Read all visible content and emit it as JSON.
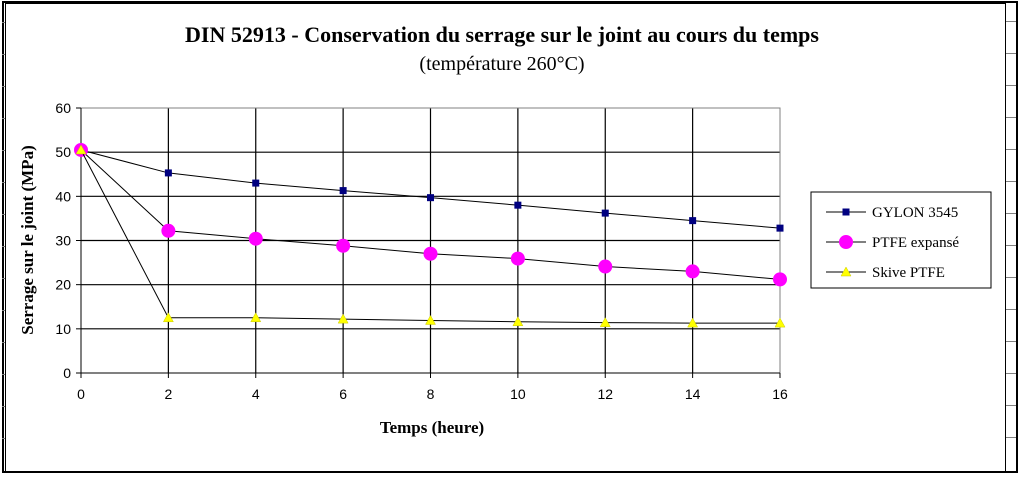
{
  "chart_data": {
    "type": "line",
    "title": "DIN 52913 - Conservation du serrage sur le joint au cours du temps",
    "subtitle": "(température 260°C)",
    "xlabel": "Temps (heure)",
    "ylabel": "Serrage sur le joint (MPa)",
    "x_ticks": [
      "0",
      "2",
      "4",
      "6",
      "8",
      "10",
      "12",
      "14",
      "16"
    ],
    "y_ticks": [
      "0",
      "10",
      "20",
      "30",
      "40",
      "50",
      "60"
    ],
    "xlim": [
      0,
      16
    ],
    "ylim": [
      0,
      60
    ],
    "grid": true,
    "legend_position": "right",
    "x": [
      0,
      2,
      4,
      6,
      8,
      10,
      12,
      14,
      16
    ],
    "series": [
      {
        "name": "GYLON 3545",
        "marker": "square",
        "color": "#000080",
        "values": [
          50.5,
          45.3,
          43.0,
          41.3,
          39.7,
          38.0,
          36.2,
          34.5,
          32.8
        ]
      },
      {
        "name": "PTFE expansé",
        "marker": "circle",
        "color": "#ff00ff",
        "values": [
          50.5,
          32.2,
          30.4,
          28.8,
          27.0,
          25.9,
          24.1,
          23.0,
          21.2
        ]
      },
      {
        "name": "Skive PTFE",
        "marker": "triangle",
        "color": "#ffff00",
        "values": [
          50.5,
          12.5,
          12.5,
          12.2,
          11.9,
          11.6,
          11.4,
          11.3,
          11.3
        ]
      }
    ]
  }
}
